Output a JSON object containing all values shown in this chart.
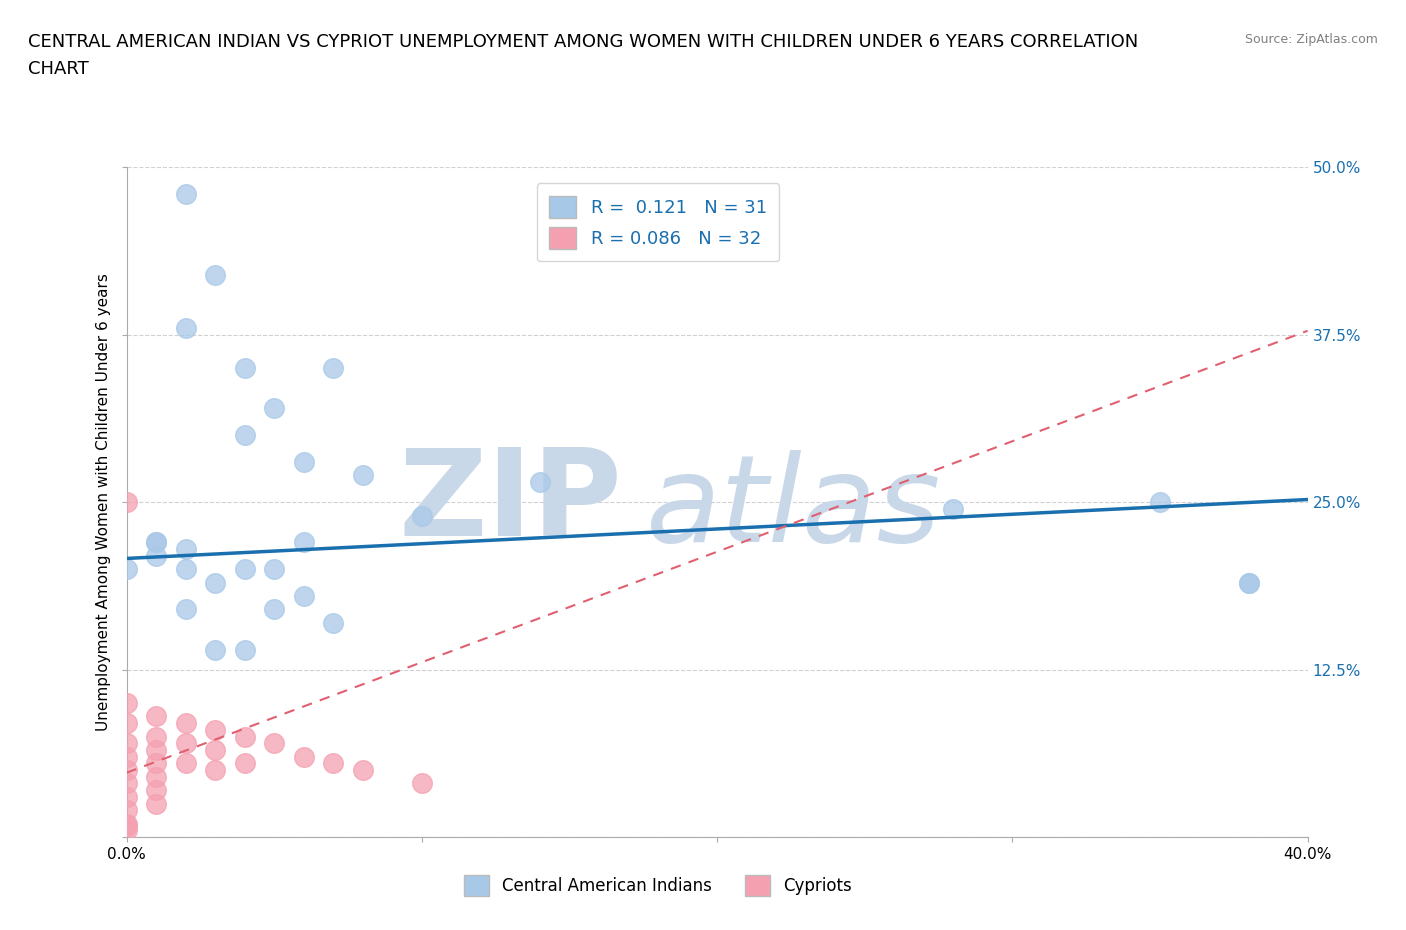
{
  "title_line1": "CENTRAL AMERICAN INDIAN VS CYPRIOT UNEMPLOYMENT AMONG WOMEN WITH CHILDREN UNDER 6 YEARS CORRELATION",
  "title_line2": "CHART",
  "source": "Source: ZipAtlas.com",
  "ylabel": "Unemployment Among Women with Children Under 6 years",
  "xlim": [
    0.0,
    0.4
  ],
  "ylim": [
    0.0,
    0.5
  ],
  "xticks": [
    0.0,
    0.1,
    0.2,
    0.3,
    0.4
  ],
  "xticklabels": [
    "0.0%",
    "",
    "",
    "",
    "40.0%"
  ],
  "yticks": [
    0.0,
    0.125,
    0.25,
    0.375,
    0.5
  ],
  "left_yticklabels": [
    "",
    "",
    "",
    "",
    ""
  ],
  "right_yticklabels": [
    "",
    "12.5%",
    "25.0%",
    "37.5%",
    "50.0%"
  ],
  "blue_R": 0.121,
  "blue_N": 31,
  "pink_R": 0.086,
  "pink_N": 32,
  "blue_color": "#a8c8e8",
  "pink_color": "#f4a0b0",
  "blue_line_color": "#1a6faf",
  "pink_line_color": "#e06070",
  "watermark_zip": "ZIP",
  "watermark_atlas": "atlas",
  "watermark_color": "#c8d8e8",
  "legend_label_blue": "Central American Indians",
  "legend_label_pink": "Cypriots",
  "blue_scatter_x": [
    0.02,
    0.03,
    0.02,
    0.04,
    0.04,
    0.05,
    0.06,
    0.07,
    0.06,
    0.08,
    0.1,
    0.14,
    0.28,
    0.35,
    0.38,
    0.38,
    0.01,
    0.01,
    0.02,
    0.02,
    0.03,
    0.04,
    0.05,
    0.05,
    0.06,
    0.07,
    0.0,
    0.01,
    0.02,
    0.03,
    0.04
  ],
  "blue_scatter_y": [
    0.48,
    0.42,
    0.38,
    0.35,
    0.3,
    0.32,
    0.28,
    0.35,
    0.22,
    0.27,
    0.24,
    0.265,
    0.245,
    0.25,
    0.19,
    0.19,
    0.21,
    0.22,
    0.2,
    0.17,
    0.19,
    0.2,
    0.2,
    0.17,
    0.18,
    0.16,
    0.2,
    0.22,
    0.215,
    0.14,
    0.14
  ],
  "pink_scatter_x": [
    0.0,
    0.0,
    0.0,
    0.0,
    0.0,
    0.0,
    0.0,
    0.0,
    0.0,
    0.0,
    0.0,
    0.0,
    0.01,
    0.01,
    0.01,
    0.01,
    0.01,
    0.01,
    0.01,
    0.02,
    0.02,
    0.02,
    0.03,
    0.03,
    0.03,
    0.04,
    0.04,
    0.05,
    0.06,
    0.07,
    0.08,
    0.1
  ],
  "pink_scatter_y": [
    0.25,
    0.1,
    0.085,
    0.07,
    0.06,
    0.05,
    0.04,
    0.03,
    0.02,
    0.01,
    0.008,
    0.005,
    0.09,
    0.075,
    0.065,
    0.055,
    0.045,
    0.035,
    0.025,
    0.085,
    0.07,
    0.055,
    0.08,
    0.065,
    0.05,
    0.075,
    0.055,
    0.07,
    0.06,
    0.055,
    0.05,
    0.04
  ],
  "blue_trendline_x": [
    0.0,
    0.4
  ],
  "blue_trendline_y": [
    0.208,
    0.252
  ],
  "pink_trendline_x": [
    0.0,
    0.4
  ],
  "pink_trendline_y": [
    0.048,
    0.378
  ],
  "grid_color": "#cccccc",
  "bg_color": "#ffffff",
  "title_fontsize": 13,
  "axis_label_fontsize": 11,
  "tick_fontsize": 11,
  "right_tick_color": "#1a6faf"
}
